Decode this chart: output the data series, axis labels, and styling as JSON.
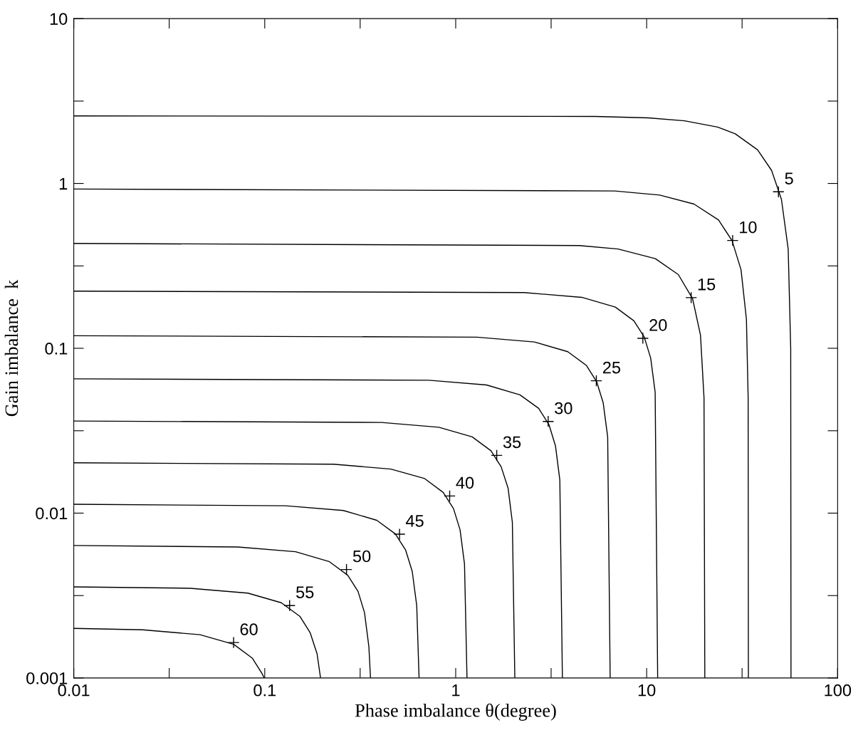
{
  "chart_data": {
    "type": "line",
    "xlabel": "Phase imbalance θ(degree)",
    "ylabel": "Gain imbalance  k",
    "log": "xy",
    "grid": false,
    "legend": false,
    "marker": "none",
    "line_style": "solid",
    "xlim": [
      0.01,
      100
    ],
    "ylim": [
      0.001,
      10
    ],
    "xticks": [
      0.01,
      {
        "value": 0.0316,
        "label": null
      },
      0.1,
      {
        "value": 0.316,
        "label": null
      },
      1,
      {
        "value": 3.16,
        "label": null
      },
      10,
      {
        "value": 31.6,
        "label": null
      },
      100
    ],
    "yticks": [
      0.001,
      {
        "value": 0.00316,
        "label": null
      },
      0.01,
      {
        "value": 0.0316,
        "label": null
      },
      0.1,
      {
        "value": 0.316,
        "label": null
      },
      1,
      {
        "value": 3.16,
        "label": null
      },
      10
    ],
    "series": [
      {
        "color": "#000000",
        "x": [
          0.01,
          5.4,
          10.2,
          15.8,
          23.5,
          29.1,
          38.1,
          45.1,
          50.8,
          55.1,
          56.8,
          57.0
        ],
        "values": [
          2.57,
          2.55,
          2.5,
          2.4,
          2.2,
          2.0,
          1.6,
          1.2,
          0.8,
          0.4,
          0.1,
          0.001
        ]
      },
      {
        "color": "#000000",
        "x": [
          0.01,
          6.8,
          11.7,
          17.7,
          23.8,
          28.0,
          31.2,
          33.3,
          34.0,
          34.1
        ],
        "values": [
          0.925,
          0.9,
          0.85,
          0.75,
          0.6,
          0.45,
          0.3,
          0.15,
          0.05,
          0.001
        ]
      },
      {
        "color": "#000000",
        "x": [
          0.01,
          4.44,
          7.09,
          11.1,
          14.65,
          17.4,
          19.14,
          19.97,
          20.16
        ],
        "values": [
          0.4326,
          0.42,
          0.4,
          0.35,
          0.28,
          0.2,
          0.12,
          0.05,
          0.001
        ]
      },
      {
        "color": "#000000",
        "x": [
          0.01,
          2.28,
          4.57,
          6.85,
          8.57,
          9.71,
          10.5,
          11.08,
          11.42
        ],
        "values": [
          0.2222,
          0.2178,
          0.2038,
          0.1778,
          0.1469,
          0.1171,
          0.0871,
          0.054,
          0.001
        ]
      },
      {
        "color": "#000000",
        "x": [
          0.01,
          1.29,
          2.58,
          3.86,
          4.83,
          5.47,
          5.92,
          6.25,
          6.44
        ],
        "values": [
          0.1192,
          0.1168,
          0.1093,
          0.0954,
          0.0788,
          0.0628,
          0.0467,
          0.029,
          0.001
        ]
      },
      {
        "color": "#000000",
        "x": [
          0.01,
          0.724,
          1.45,
          2.17,
          2.72,
          3.08,
          3.33,
          3.51,
          3.62
        ],
        "values": [
          0.0653,
          0.064,
          0.0599,
          0.0522,
          0.0432,
          0.0344,
          0.0256,
          0.0159,
          0.001
        ]
      },
      {
        "color": "#000000",
        "x": [
          0.01,
          0.408,
          0.816,
          1.22,
          1.53,
          1.73,
          1.88,
          1.98,
          2.04
        ],
        "values": [
          0.0362,
          0.0355,
          0.0332,
          0.029,
          0.0239,
          0.0191,
          0.0142,
          0.0088,
          0.001
        ]
      },
      {
        "color": "#000000",
        "x": [
          0.01,
          0.229,
          0.458,
          0.688,
          0.86,
          0.974,
          1.054,
          1.112,
          1.146
        ],
        "values": [
          0.0202,
          0.0198,
          0.0185,
          0.0162,
          0.01335,
          0.01065,
          0.00792,
          0.00491,
          0.001
        ]
      },
      {
        "color": "#000000",
        "x": [
          0.01,
          0.129,
          0.258,
          0.386,
          0.483,
          0.547,
          0.592,
          0.625,
          0.643
        ],
        "values": [
          0.01131,
          0.01108,
          0.01037,
          0.00905,
          0.00748,
          0.00596,
          0.00443,
          0.00275,
          0.001
        ]
      },
      {
        "color": "#000000",
        "x": [
          0.01,
          0.0724,
          0.145,
          0.217,
          0.272,
          0.308,
          0.333,
          0.351,
          0.358
        ],
        "values": [
          0.00636,
          0.00623,
          0.00583,
          0.00509,
          0.0042,
          0.00335,
          0.00249,
          0.00155,
          0.001
        ]
      },
      {
        "color": "#000000",
        "x": [
          0.01,
          0.0408,
          0.0816,
          0.122,
          0.153,
          0.173,
          0.188,
          0.196
        ],
        "values": [
          0.00357,
          0.0035,
          0.00327,
          0.00286,
          0.00236,
          0.00188,
          0.0014,
          0.001
        ]
      },
      {
        "color": "#000000",
        "x": [
          0.01,
          0.0229,
          0.0458,
          0.0688,
          0.086,
          0.0974,
          0.0993
        ],
        "values": [
          0.002,
          0.00196,
          0.00183,
          0.0016,
          0.00132,
          0.00105,
          0.001
        ]
      }
    ],
    "annotations": [
      {
        "text": "5",
        "x": 49.0,
        "y": 0.89
      },
      {
        "text": "10",
        "x": 28.2,
        "y": 0.451
      },
      {
        "text": "15",
        "x": 17.1,
        "y": 0.203
      },
      {
        "text": "20",
        "x": 9.55,
        "y": 0.115
      },
      {
        "text": "25",
        "x": 5.45,
        "y": 0.0635
      },
      {
        "text": "30",
        "x": 3.05,
        "y": 0.036
      },
      {
        "text": "35",
        "x": 1.64,
        "y": 0.0224
      },
      {
        "text": "40",
        "x": 0.93,
        "y": 0.0127
      },
      {
        "text": "45",
        "x": 0.508,
        "y": 0.00745
      },
      {
        "text": "50",
        "x": 0.268,
        "y": 0.00455
      },
      {
        "text": "55",
        "x": 0.135,
        "y": 0.00275
      },
      {
        "text": "60",
        "x": 0.0687,
        "y": 0.00164
      }
    ]
  }
}
